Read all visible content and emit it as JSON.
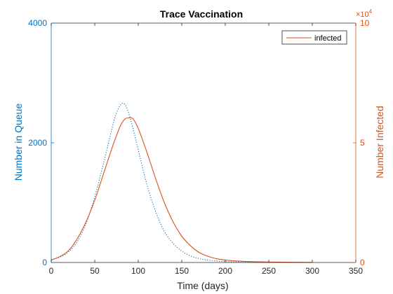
{
  "chart_data": {
    "type": "line",
    "title": "Trace Vaccination",
    "xlabel": "Time (days)",
    "ylabel_left": "Number in Queue",
    "ylabel_right": "Number Infected",
    "right_axis_exponent": "×10",
    "right_axis_exponent_power": "4",
    "xlim": [
      0,
      350
    ],
    "ylim_left": [
      0,
      4000
    ],
    "ylim_right": [
      0,
      10
    ],
    "x_ticks": [
      "0",
      "50",
      "100",
      "150",
      "200",
      "250",
      "300",
      "350"
    ],
    "y_left_ticks": [
      "0",
      "2000",
      "4000"
    ],
    "y_right_ticks": [
      "0",
      "5",
      "10"
    ],
    "grid": false,
    "legend": {
      "position": "top-right",
      "entries": [
        "infected"
      ]
    },
    "colors": {
      "queue": "#0072BD",
      "infected": "#D95319"
    },
    "series": [
      {
        "axis": "left",
        "style": "dotted",
        "x": [
          0,
          10,
          20,
          30,
          40,
          50,
          60,
          70,
          75,
          80,
          83,
          86,
          90,
          95,
          100,
          110,
          120,
          130,
          140,
          150,
          160,
          170,
          180,
          190,
          200,
          220,
          250,
          280,
          300
        ],
        "y": [
          50,
          90,
          180,
          350,
          650,
          1100,
          1650,
          2250,
          2500,
          2640,
          2660,
          2610,
          2450,
          2180,
          1880,
          1300,
          850,
          520,
          320,
          190,
          110,
          65,
          40,
          25,
          15,
          8,
          3,
          2,
          1
        ]
      },
      {
        "name": "infected",
        "axis": "right",
        "style": "solid",
        "x": [
          0,
          10,
          20,
          30,
          40,
          50,
          60,
          70,
          75,
          80,
          85,
          90,
          92,
          95,
          100,
          110,
          120,
          130,
          140,
          150,
          160,
          170,
          180,
          190,
          200,
          220,
          250,
          280,
          300
        ],
        "y": [
          0.1,
          0.25,
          0.5,
          1.0,
          1.7,
          2.6,
          3.7,
          4.8,
          5.3,
          5.75,
          6.0,
          6.05,
          6.05,
          5.95,
          5.6,
          4.6,
          3.5,
          2.5,
          1.7,
          1.1,
          0.7,
          0.42,
          0.26,
          0.16,
          0.1,
          0.05,
          0.02,
          0.01,
          0.005
        ]
      }
    ]
  }
}
